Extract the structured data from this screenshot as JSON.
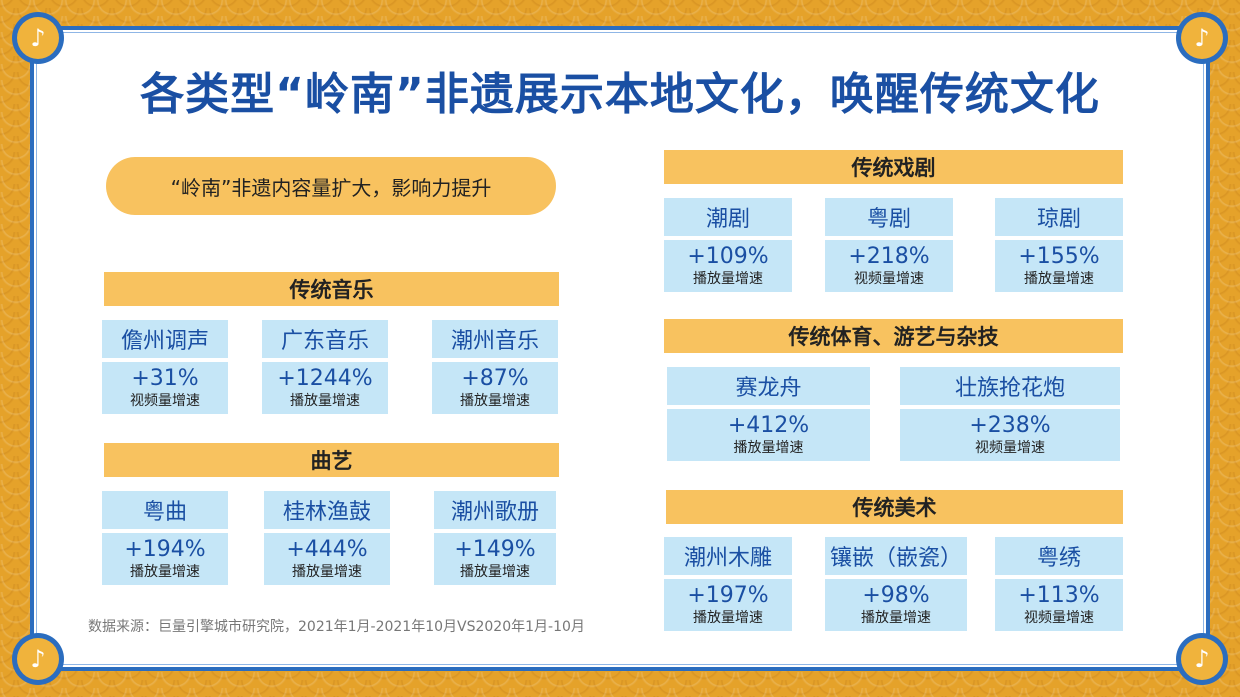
{
  "title": "各类型“岭南”非遗展示本地文化，唤醒传统文化",
  "subtitle": "“岭南”非遗内容量扩大，影响力提升",
  "corner_glyph": "♪",
  "colors": {
    "frame_blue": "#2b6dbf",
    "title_blue": "#1a4fa3",
    "header_yellow": "#f8c25f",
    "card_blue": "#c5e6f7",
    "background_gold": "#e5a22a"
  },
  "sections": [
    {
      "title": "传统音乐",
      "items": [
        {
          "name": "儋州调声",
          "value": "+31%",
          "metric": "视频量增速"
        },
        {
          "name": "广东音乐",
          "value": "+1244%",
          "metric": "播放量增速"
        },
        {
          "name": "潮州音乐",
          "value": "+87%",
          "metric": "播放量增速"
        }
      ]
    },
    {
      "title": "曲艺",
      "items": [
        {
          "name": "粤曲",
          "value": "+194%",
          "metric": "播放量增速"
        },
        {
          "name": "桂林渔鼓",
          "value": "+444%",
          "metric": "播放量增速"
        },
        {
          "name": "潮州歌册",
          "value": "+149%",
          "metric": "播放量增速"
        }
      ]
    },
    {
      "title": "传统戏剧",
      "items": [
        {
          "name": "潮剧",
          "value": "+109%",
          "metric": "播放量增速"
        },
        {
          "name": "粤剧",
          "value": "+218%",
          "metric": "视频量增速"
        },
        {
          "name": "琼剧",
          "value": "+155%",
          "metric": "播放量增速"
        }
      ]
    },
    {
      "title": "传统体育、游艺与杂技",
      "items": [
        {
          "name": "赛龙舟",
          "value": "+412%",
          "metric": "播放量增速"
        },
        {
          "name": "壮族抢花炮",
          "value": "+238%",
          "metric": "视频量增速"
        }
      ]
    },
    {
      "title": "传统美术",
      "items": [
        {
          "name": "潮州木雕",
          "value": "+197%",
          "metric": "播放量增速"
        },
        {
          "name": "镶嵌（嵌瓷）",
          "value": "+98%",
          "metric": "播放量增速"
        },
        {
          "name": "粤绣",
          "value": "+113%",
          "metric": "视频量增速"
        }
      ]
    }
  ],
  "source": "数据来源：巨量引擎城市研究院，2021年1月-2021年10月VS2020年1月-10月"
}
